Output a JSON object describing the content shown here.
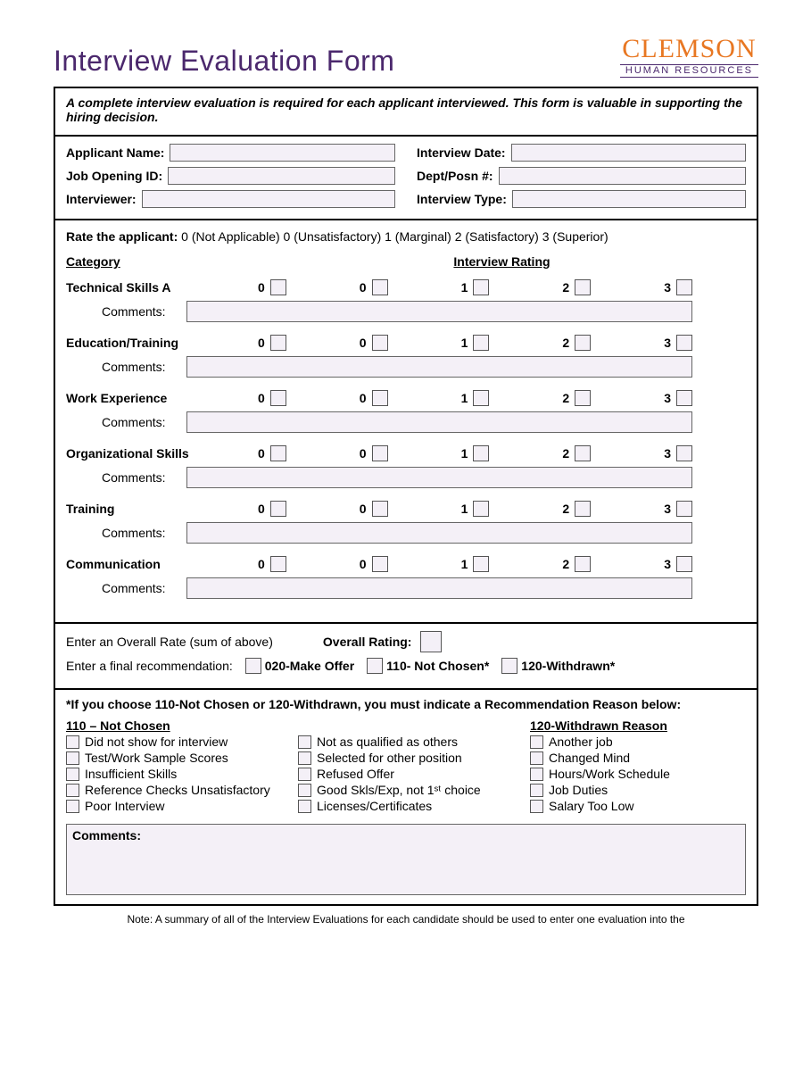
{
  "colors": {
    "brand_orange": "#e87722",
    "brand_purple": "#4b286d",
    "field_fill": "#f4f0f7",
    "border": "#000000"
  },
  "logo": {
    "name": "CLEMSON",
    "subtitle": "HUMAN RESOURCES"
  },
  "page_title": "Interview Evaluation Form",
  "intro": "A complete interview evaluation is required for each applicant interviewed.  This form is valuable in supporting the hiring decision.",
  "fields": {
    "applicant_name_label": "Applicant Name:",
    "interview_date_label": "Interview Date:",
    "job_opening_id_label": "Job Opening ID:",
    "dept_posn_label": "Dept/Posn #:",
    "interviewer_label": "Interviewer:",
    "interview_type_label": "Interview Type:"
  },
  "scale_key_prefix": "Rate the applicant: ",
  "scale_key": "0 (Not Applicable) 0 (Unsatisfactory) 1 (Marginal) 2 (Satisfactory) 3 (Superior)",
  "headers": {
    "category": "Category",
    "rating": "Interview Rating"
  },
  "rating_values": [
    "0",
    "0",
    "1",
    "2",
    "3"
  ],
  "categories": [
    {
      "name": "Technical Skills A",
      "comments_label": "Comments:"
    },
    {
      "name": "Education/Training",
      "comments_label": "Comments:"
    },
    {
      "name": "Work Experience",
      "comments_label": "Comments:"
    },
    {
      "name": "Organizational Skills",
      "comments_label": "Comments:"
    },
    {
      "name": "Training",
      "comments_label": "Comments:"
    },
    {
      "name": "Communication",
      "comments_label": "Comments:"
    }
  ],
  "overall": {
    "rate_label": "Enter an Overall Rate (sum of above)",
    "rating_label": "Overall Rating:",
    "final_rec_label": "Enter a final recommendation:",
    "options": [
      {
        "code": "020-Make Offer"
      },
      {
        "code": "110- Not Chosen*"
      },
      {
        "code": "120-Withdrawn*"
      }
    ]
  },
  "reasons": {
    "note": "*If you choose 110-Not Chosen or 120-Withdrawn, you must indicate a Recommendation Reason below:",
    "not_chosen_header": "110 – Not Chosen",
    "withdrawn_header": "120-Withdrawn Reason",
    "col1": [
      "Did not show for interview",
      "Test/Work Sample Scores",
      "Insufficient Skills",
      "Reference Checks Unsatisfactory",
      "Poor Interview"
    ],
    "col2": [
      "Not as qualified as others",
      "Selected for other position",
      "Refused Offer",
      "Good Skls/Exp, not 1ˢᵗ choice",
      "Licenses/Certificates"
    ],
    "col3": [
      "Another job",
      "Changed Mind",
      "Hours/Work Schedule",
      "Job Duties",
      "Salary Too Low"
    ],
    "comments_label": "Comments:"
  },
  "footnote": "Note:  A summary of all of the Interview Evaluations for each candidate should be used to enter one evaluation into the"
}
